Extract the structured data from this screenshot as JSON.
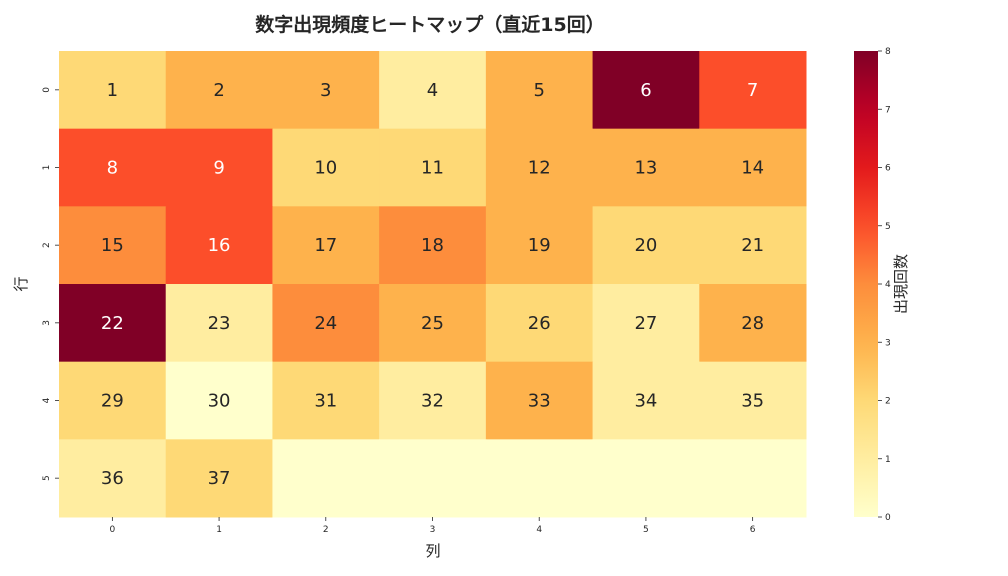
{
  "chart_data": {
    "type": "heatmap",
    "title": "数字出現頻度ヒートマップ（直近15回）",
    "xlabel": "列",
    "ylabel": "行",
    "colorbar_label": "出現回数",
    "x_ticks": [
      "0",
      "1",
      "2",
      "3",
      "4",
      "5",
      "6"
    ],
    "y_ticks": [
      "0",
      "1",
      "2",
      "3",
      "4",
      "5"
    ],
    "colorbar_ticks": [
      "0",
      "1",
      "2",
      "3",
      "4",
      "5",
      "6",
      "7",
      "8"
    ],
    "colorbar_range": [
      0,
      8
    ],
    "colormap": "YlOrRd",
    "numbers": [
      [
        1,
        2,
        3,
        4,
        5,
        6,
        7
      ],
      [
        8,
        9,
        10,
        11,
        12,
        13,
        14
      ],
      [
        15,
        16,
        17,
        18,
        19,
        20,
        21
      ],
      [
        22,
        23,
        24,
        25,
        26,
        27,
        28
      ],
      [
        29,
        30,
        31,
        32,
        33,
        34,
        35
      ],
      [
        36,
        37,
        null,
        null,
        null,
        null,
        null
      ]
    ],
    "values": [
      [
        2,
        3,
        3,
        1,
        3,
        8,
        5
      ],
      [
        5,
        5,
        2,
        2,
        3,
        3,
        3
      ],
      [
        4,
        5,
        3,
        4,
        3,
        2,
        2
      ],
      [
        8,
        1,
        4,
        3,
        2,
        1,
        3
      ],
      [
        2,
        0,
        2,
        1,
        3,
        1,
        1
      ],
      [
        1,
        2,
        0,
        0,
        0,
        0,
        0
      ]
    ]
  }
}
